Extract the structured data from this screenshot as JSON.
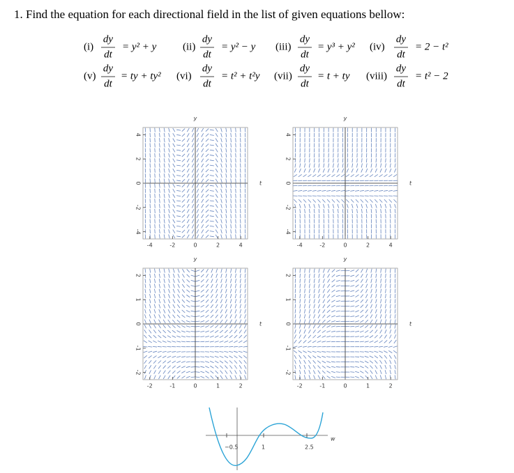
{
  "title": "1. Find the equation for each directional field in the list of given equations bellow:",
  "fraction": {
    "numerator": "dy",
    "denominator": "dt"
  },
  "equations": [
    {
      "label": "(i)",
      "rhs": "= y² + y"
    },
    {
      "label": "(ii)",
      "rhs": "= y² − y"
    },
    {
      "label": "(iii)",
      "rhs": "= y³ + y²"
    },
    {
      "label": "(iv)",
      "rhs": "= 2 − t²"
    },
    {
      "label": "(v)",
      "rhs": "= ty + ty²"
    },
    {
      "label": "(vi)",
      "rhs": "= t² + t²y"
    },
    {
      "label": "(vii)",
      "rhs": "= t + ty"
    },
    {
      "label": "(viii)",
      "rhs": "= t² − 2"
    }
  ],
  "plots": [
    {
      "y_label": "y",
      "t_label": "t",
      "xticks": [
        -4,
        -2,
        0,
        2,
        4
      ],
      "yticks": [
        4,
        2,
        0,
        -2,
        -4
      ]
    },
    {
      "y_label": "y",
      "t_label": "t",
      "xticks": [
        -4,
        -2,
        0,
        2,
        4
      ],
      "yticks": [
        4,
        2,
        0,
        -2,
        -4
      ]
    },
    {
      "y_label": "y",
      "t_label": "t",
      "xticks": [
        -2,
        -1,
        0,
        1,
        2
      ],
      "yticks": [
        2,
        1,
        0,
        -1,
        -2
      ]
    },
    {
      "y_label": "y",
      "t_label": "t",
      "xticks": [
        -2,
        -1,
        0,
        1,
        2
      ],
      "yticks": [
        2,
        1,
        0,
        -1,
        -2
      ]
    }
  ],
  "curve": {
    "axis_label": "w",
    "ticks": [
      "−0.5",
      "1",
      "2.5"
    ]
  }
}
